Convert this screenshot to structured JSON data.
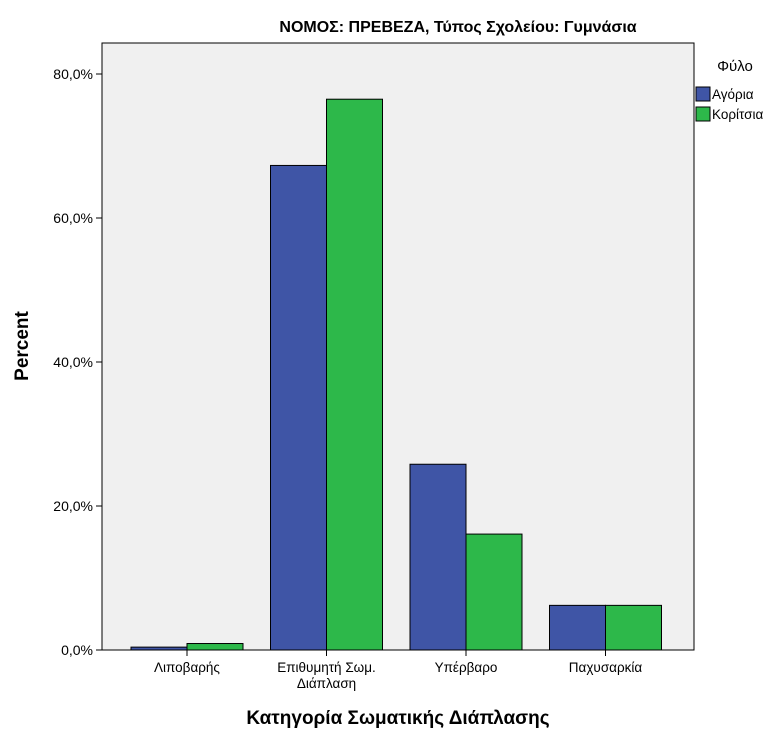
{
  "chart_data": {
    "type": "bar",
    "title": "ΝΟΜΟΣ: ΠΡΕΒΕΖΑ, Τύπος Σχολείου: Γυμνάσια",
    "xlabel": "Κατηγορία Σωματικής Διάπλασης",
    "ylabel": "Percent",
    "ylim": [
      0,
      80
    ],
    "yticks": [
      "0,0%",
      "20,0%",
      "40,0%",
      "60,0%",
      "80,0%"
    ],
    "categories": [
      [
        "Λιποβαρής"
      ],
      [
        "Επιθυμητή Σωμ.",
        "Διάπλαση"
      ],
      [
        "Υπέρβαρο"
      ],
      [
        "Παχυσαρκία"
      ]
    ],
    "legend_title": "Φύλο",
    "legend_position": "right",
    "grid": false,
    "series": [
      {
        "name": "Αγόρια",
        "color": "#3f55a6",
        "values": [
          0.4,
          67.3,
          25.8,
          6.2
        ]
      },
      {
        "name": "Κορίτσια",
        "color": "#2db84a",
        "values": [
          0.9,
          76.5,
          16.1,
          6.2
        ]
      }
    ]
  }
}
